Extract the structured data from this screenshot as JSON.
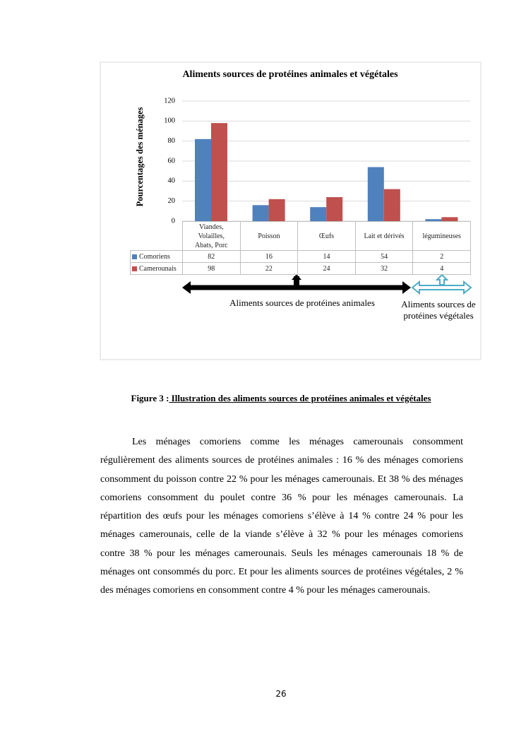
{
  "chart_data": {
    "type": "bar",
    "title": "Aliments sources de protéines animales et végétales",
    "y_label": "Pourcentages des ménages",
    "categories": [
      "Viandes, Volailles, Abats, Porc",
      "Poisson",
      "Œufs",
      "Lait et dérivés",
      "légumineuses"
    ],
    "series": [
      {
        "name": "Comoriens",
        "color": "#4f81bd",
        "values": [
          82,
          16,
          14,
          54,
          2
        ]
      },
      {
        "name": "Camerounais",
        "color": "#c0504d",
        "values": [
          98,
          22,
          24,
          32,
          4
        ]
      }
    ],
    "ylim": [
      0,
      120
    ],
    "yticks": [
      0,
      20,
      40,
      60,
      80,
      100,
      120
    ],
    "grid": true,
    "annotations": [
      "Aliments sources de protéines animales",
      "Aliments sources de protéines végétales"
    ]
  },
  "caption": {
    "label": "Figure 3 :",
    "text": " Illustration des aliments sources de protéines animales et végétales"
  },
  "paragraph": "Les ménages comoriens comme les ménages camerounais consomment régulièrement des aliments sources de protéines animales : 16 % des ménages comoriens consomment du poisson contre 22 % pour les ménages camerounais. Et 38 % des ménages comoriens consomment du poulet contre 36 % pour les ménages camerounais. La répartition des œufs pour les ménages comoriens s’élève à 14 % contre 24 % pour les ménages camerounais, celle de la viande s’élève à  32 % pour les ménages comoriens contre 38 % pour les ménages camerounais. Seuls les ménages camerounais 18 % de ménages ont consommés du porc. Et pour les aliments sources de protéines végétales, 2 % des ménages comoriens en consomment contre 4 % pour les ménages camerounais.",
  "page_number": "26"
}
